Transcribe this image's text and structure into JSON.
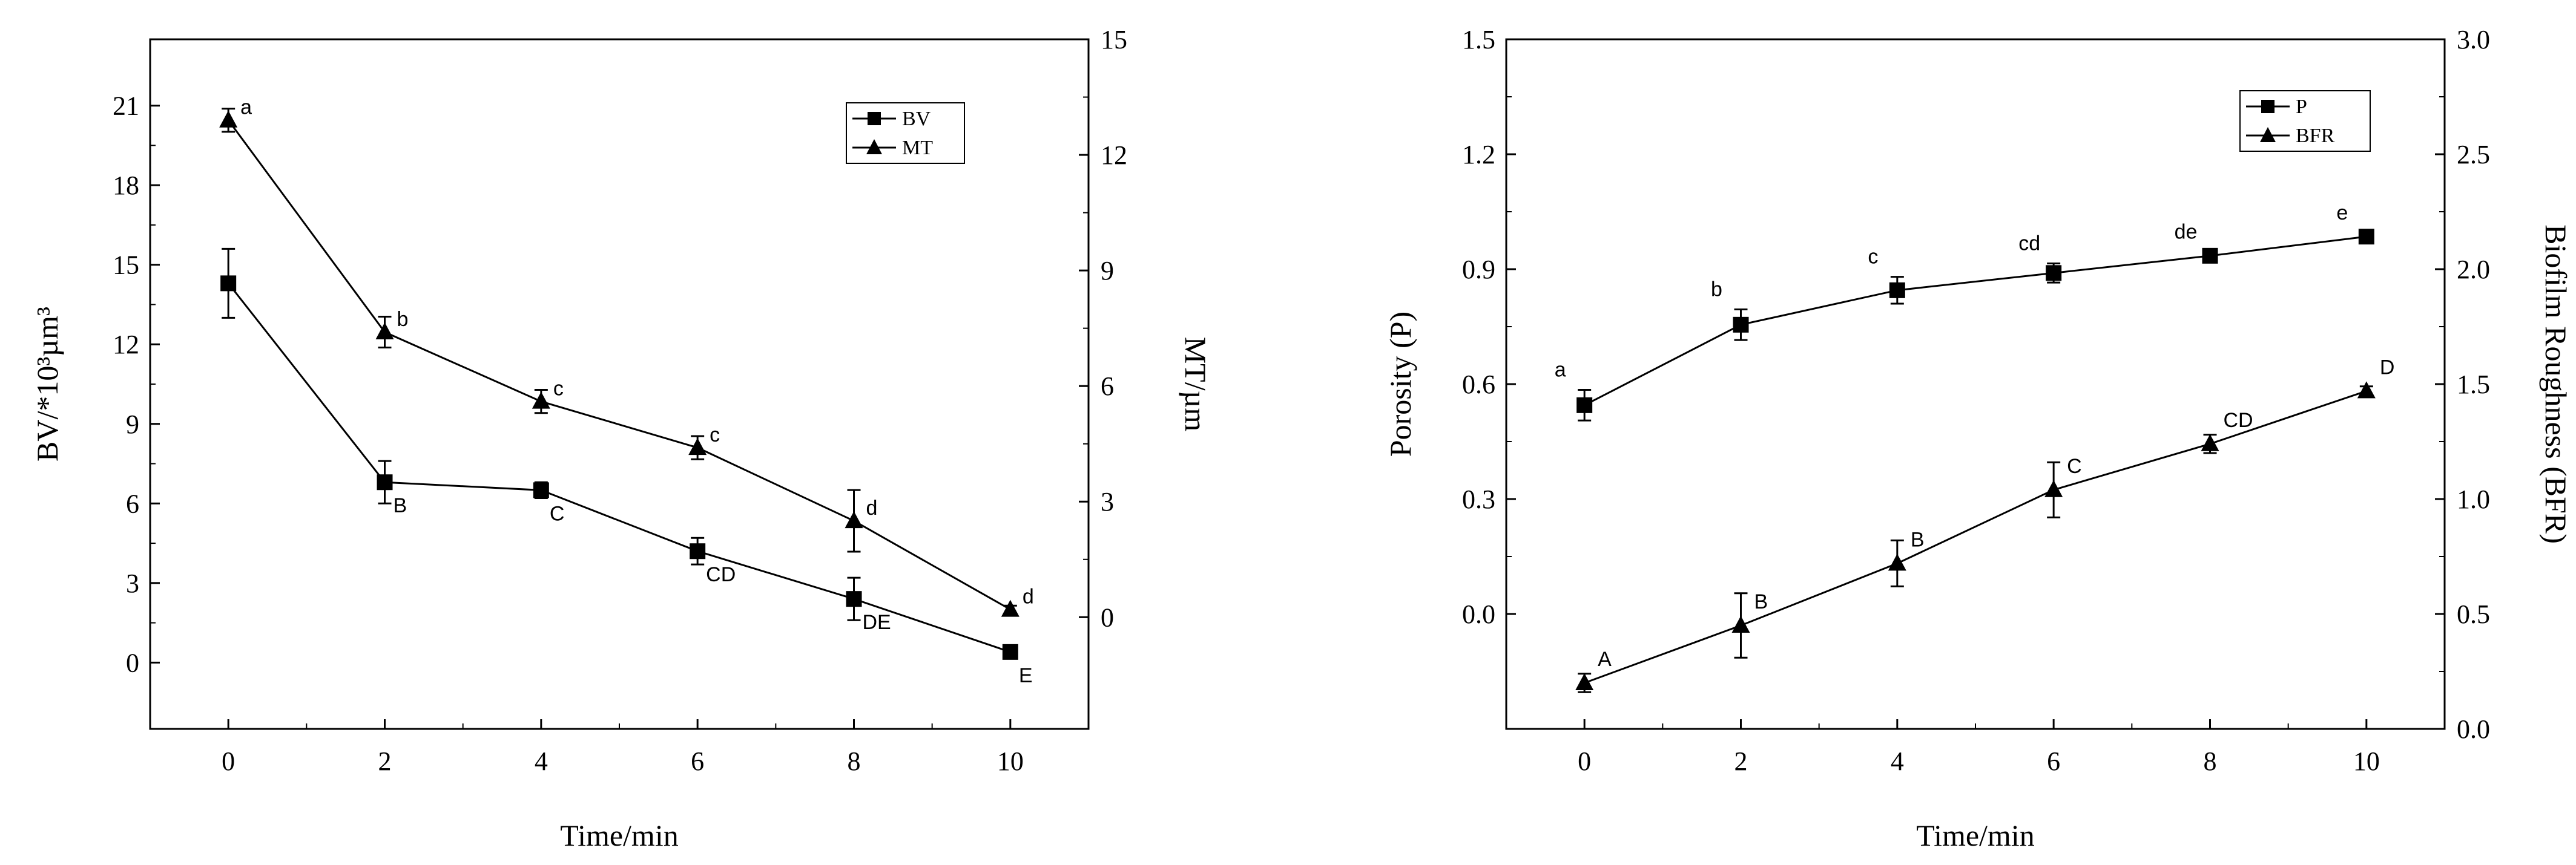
{
  "chart_data": [
    {
      "type": "line",
      "title": "",
      "xlabel": "Time/min",
      "ylabel": "BV/*10³µm³",
      "ylabel_right": "MT/µm",
      "x": [
        0,
        2,
        4,
        6,
        8,
        10
      ],
      "xticks": [
        "0",
        "2",
        "4",
        "6",
        "8",
        "10"
      ],
      "xlim": [
        -1,
        11
      ],
      "ylim": [
        -2.5,
        23.5
      ],
      "yticks": [
        "0",
        "3",
        "6",
        "9",
        "12",
        "15",
        "18",
        "21"
      ],
      "ylim_right": [
        -2.9,
        15.0
      ],
      "yticks_right": [
        "0",
        "3",
        "6",
        "9",
        "12",
        "15"
      ],
      "legend": {
        "position": "top-right",
        "items": [
          "BV",
          "MT"
        ]
      },
      "series": [
        {
          "name": "BV",
          "axis": "left",
          "marker": "square",
          "values": [
            14.3,
            6.8,
            6.5,
            4.2,
            2.4,
            0.4
          ],
          "errors": [
            1.3,
            0.8,
            0.3,
            0.5,
            0.8,
            0.2
          ],
          "letters": [
            "",
            "B",
            "C",
            "CD",
            "DE",
            "E"
          ]
        },
        {
          "name": "MT",
          "axis": "right",
          "marker": "triangle",
          "values": [
            12.9,
            7.4,
            5.6,
            4.4,
            2.5,
            0.2
          ],
          "errors": [
            0.3,
            0.4,
            0.3,
            0.3,
            0.8,
            0.1
          ],
          "letters": [
            "a",
            "b",
            "c",
            "c",
            "d",
            "d"
          ]
        }
      ]
    },
    {
      "type": "line",
      "title": "",
      "xlabel": "Time/min",
      "ylabel": "Porosity (P)",
      "ylabel_right": "Biofilm Roughness (BFR)",
      "x": [
        0,
        2,
        4,
        6,
        8,
        10
      ],
      "xticks": [
        "0",
        "2",
        "4",
        "6",
        "8",
        "10"
      ],
      "xlim": [
        -1,
        11
      ],
      "ylim": [
        -0.3,
        1.5
      ],
      "yticks": [
        "0.0",
        "0.3",
        "0.6",
        "0.9",
        "1.2",
        "1.5"
      ],
      "ylim_right": [
        0.0,
        3.0
      ],
      "yticks_right": [
        "0.0",
        "0.5",
        "1.0",
        "1.5",
        "2.0",
        "2.5",
        "3.0"
      ],
      "legend": {
        "position": "top-right",
        "items": [
          "P",
          "BFR"
        ]
      },
      "series": [
        {
          "name": "P",
          "axis": "left",
          "marker": "square",
          "values": [
            0.545,
            0.755,
            0.845,
            0.89,
            0.935,
            0.985
          ],
          "errors": [
            0.04,
            0.04,
            0.035,
            0.025,
            0.01,
            0.01
          ],
          "letters": [
            "a",
            "b",
            "c",
            "cd",
            "de",
            "e"
          ]
        },
        {
          "name": "BFR",
          "axis": "right",
          "marker": "triangle",
          "values": [
            0.2,
            0.45,
            0.72,
            1.04,
            1.24,
            1.47
          ],
          "errors": [
            0.04,
            0.14,
            0.1,
            0.12,
            0.04,
            0.02
          ],
          "letters": [
            "A",
            "B",
            "B",
            "C",
            "CD",
            "D"
          ]
        }
      ]
    }
  ]
}
